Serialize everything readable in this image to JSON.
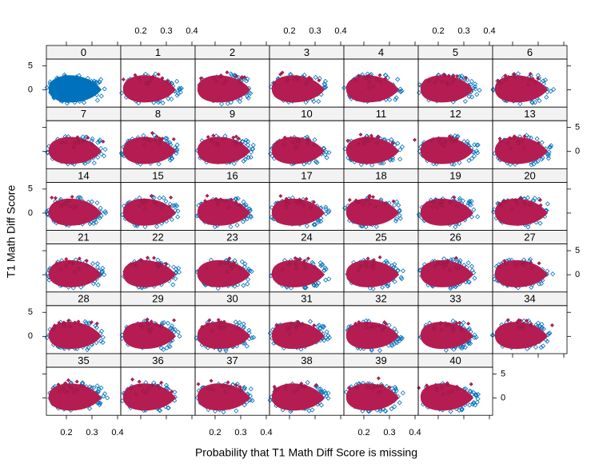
{
  "chart_data": {
    "type": "scatter",
    "xlabel": "Probability that T1 Math Diff Score is missing",
    "ylabel": "T1 Math Diff Score",
    "panels": [
      "0",
      "1",
      "2",
      "3",
      "4",
      "5",
      "6",
      "7",
      "8",
      "9",
      "10",
      "11",
      "12",
      "13",
      "14",
      "15",
      "16",
      "17",
      "18",
      "19",
      "20",
      "21",
      "22",
      "23",
      "24",
      "25",
      "26",
      "27",
      "28",
      "29",
      "30",
      "31",
      "32",
      "33",
      "34",
      "35",
      "36",
      "37",
      "38",
      "39",
      "40"
    ],
    "xlim": [
      0.122,
      0.4125
    ],
    "ylim": [
      -3.6,
      6.4
    ],
    "xticks": [
      0.2,
      0.3,
      0.4
    ],
    "yticks": [
      0,
      5
    ],
    "observed_color": "#0072bd",
    "imputed_color": "#b51d52"
  }
}
